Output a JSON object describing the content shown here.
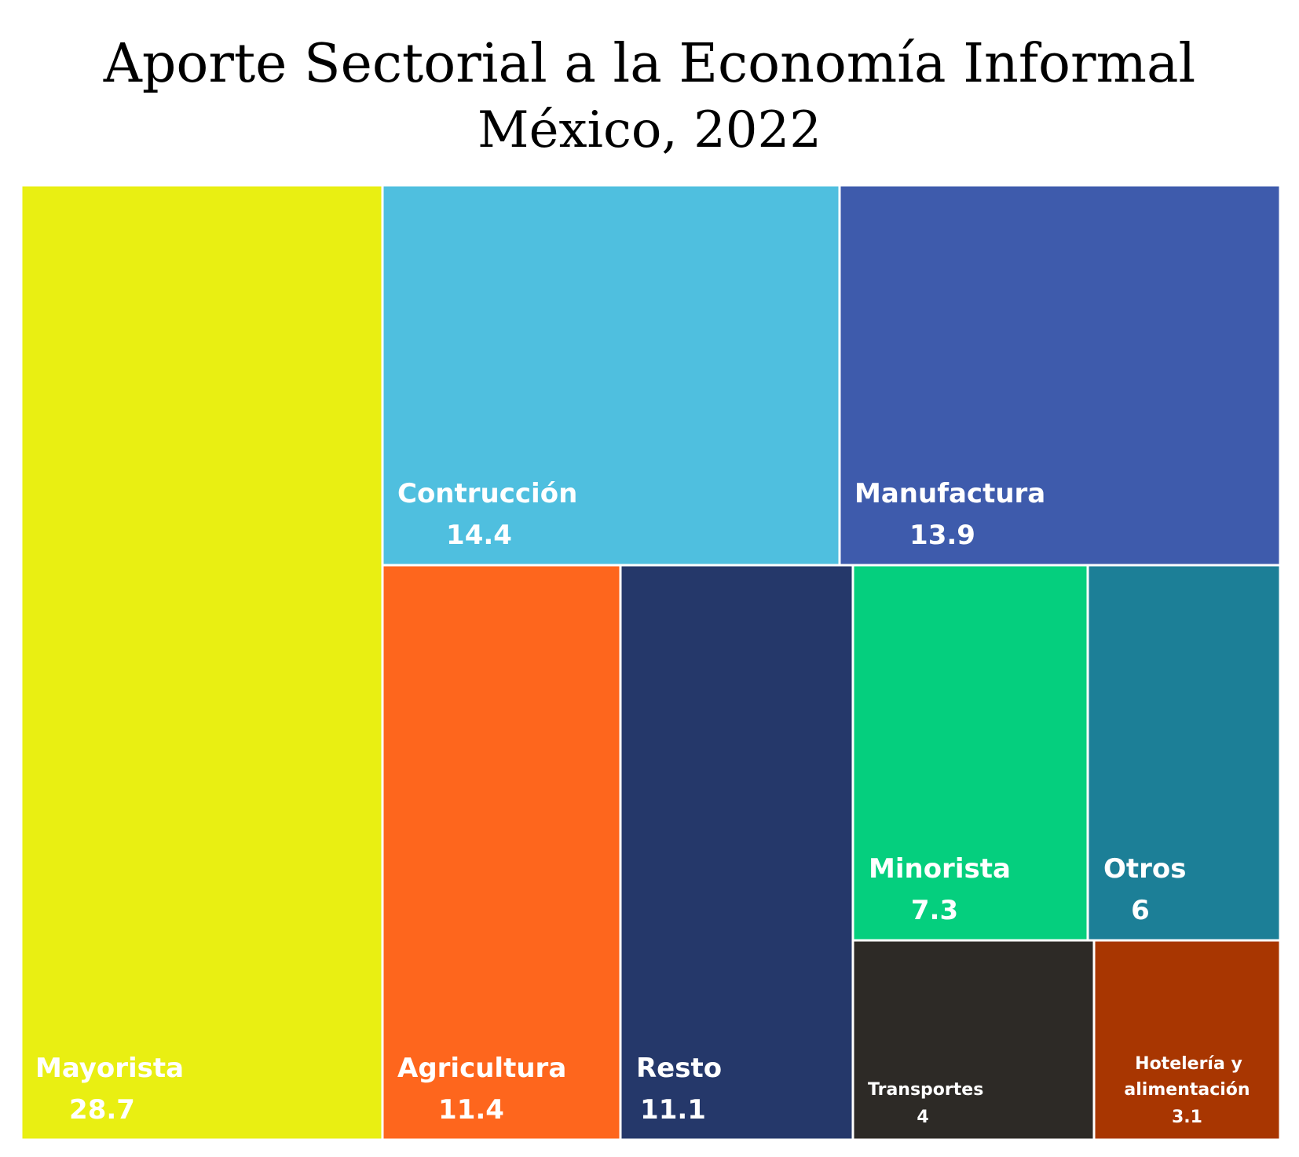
{
  "chart_data": {
    "type": "treemap",
    "title": "Aporte Sectorial a la Economía Informal",
    "subtitle": "México, 2022",
    "items": [
      {
        "label": "Mayorista",
        "value": 28.7,
        "value_text": "28.7",
        "color": "#E9EF12"
      },
      {
        "label": "Contrucción",
        "value": 14.4,
        "value_text": "14.4",
        "color": "#4FBFDF"
      },
      {
        "label": "Manufactura",
        "value": 13.9,
        "value_text": "13.9",
        "color": "#3E5BAC"
      },
      {
        "label": "Agricultura",
        "value": 11.4,
        "value_text": "11.4",
        "color": "#FE661D"
      },
      {
        "label": "Resto",
        "value": 11.1,
        "value_text": "11.1",
        "color": "#25386A"
      },
      {
        "label": "Minorista",
        "value": 7.3,
        "value_text": "7.3",
        "color": "#05CF7E"
      },
      {
        "label": "Otros",
        "value": 6,
        "value_text": "6",
        "color": "#1C7F97"
      },
      {
        "label": "Transportes",
        "value": 4,
        "value_text": "4",
        "color": "#2D2A26"
      },
      {
        "label": "Hotelería y alimentación",
        "value": 3.1,
        "value_text": "3.1",
        "color": "#A83601"
      }
    ]
  }
}
